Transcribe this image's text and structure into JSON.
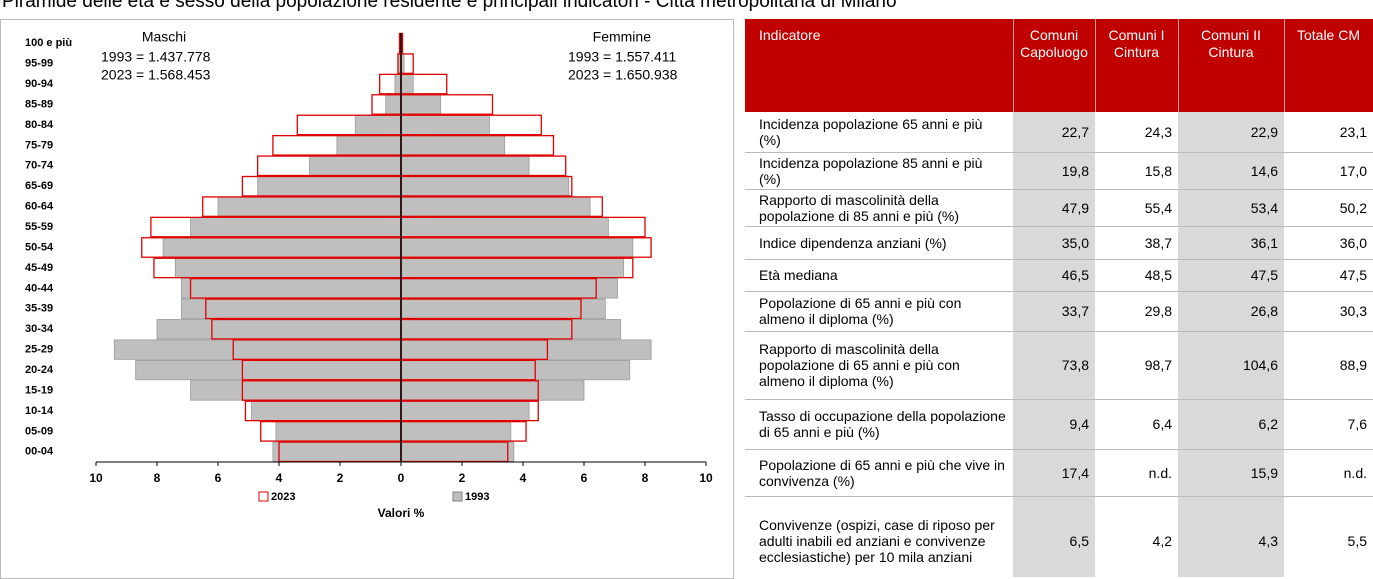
{
  "title": "Piramide delle età e sesso della popolazione residente e principali indicatori - Città metropolitana di Milano",
  "chart_data": {
    "type": "pyramid",
    "left_label": "Maschi",
    "right_label": "Femmine",
    "left_annotations": [
      "1993 = 1.437.778",
      "2023 = 1.568.453"
    ],
    "right_annotations": [
      "1993 = 1.557.411",
      "2023 = 1.650.938"
    ],
    "xlabel": "Valori %",
    "categories": [
      "100 e più",
      "95-99",
      "90-94",
      "85-89",
      "80-84",
      "75-79",
      "70-74",
      "65-69",
      "60-64",
      "55-59",
      "50-54",
      "45-49",
      "40-44",
      "35-39",
      "30-34",
      "25-29",
      "20-24",
      "15-19",
      "10-14",
      "05-09",
      "00-04"
    ],
    "series": [
      {
        "name": "2023",
        "color": "#e00000",
        "male_values": [
          0.05,
          0.1,
          0.7,
          0.95,
          3.4,
          4.2,
          4.7,
          5.2,
          6.5,
          8.2,
          8.5,
          8.1,
          6.9,
          6.4,
          6.2,
          5.5,
          5.2,
          5.2,
          5.1,
          4.6,
          4.0
        ],
        "female_values": [
          0.05,
          0.4,
          1.5,
          3.0,
          4.6,
          5.0,
          5.4,
          5.6,
          6.6,
          8.0,
          8.2,
          7.6,
          6.4,
          5.9,
          5.6,
          4.8,
          4.4,
          4.5,
          4.5,
          4.1,
          3.5
        ]
      },
      {
        "name": "1993",
        "color": "#bfbfbf",
        "male_values": [
          0.05,
          0.1,
          0.2,
          0.5,
          1.5,
          2.1,
          3.0,
          4.7,
          6.0,
          6.9,
          7.8,
          7.4,
          7.2,
          7.2,
          8.0,
          9.4,
          8.7,
          6.9,
          4.9,
          4.1,
          4.2
        ],
        "female_values": [
          0.05,
          0.1,
          0.4,
          1.3,
          2.9,
          3.4,
          4.2,
          5.5,
          6.2,
          6.8,
          7.6,
          7.3,
          7.1,
          6.7,
          7.2,
          8.2,
          7.5,
          6.0,
          4.2,
          3.6,
          3.7
        ]
      }
    ],
    "xlim": [
      -10,
      10
    ],
    "xticks": [
      {
        "value": -10,
        "label": "10"
      },
      {
        "value": -8,
        "label": "8"
      },
      {
        "value": -6,
        "label": "6"
      },
      {
        "value": -4,
        "label": "4"
      },
      {
        "value": -2,
        "label": "2"
      },
      0,
      2,
      4,
      6,
      8,
      10
    ]
  },
  "table": {
    "header": [
      "Indicatore",
      "Comuni Capoluogo",
      "Comuni I Cintura",
      "Comuni II Cintura",
      "Totale CM"
    ],
    "rows": [
      [
        "Incidenza popolazione 65 anni e più (%)",
        "22,7",
        "24,3",
        "22,9",
        "23,1"
      ],
      [
        "Incidenza popolazione 85 anni e più (%)",
        "19,8",
        "15,8",
        "14,6",
        "17,0"
      ],
      [
        "Rapporto di mascolinità della popolazione di 85 anni e più (%)",
        "47,9",
        "55,4",
        "53,4",
        "50,2"
      ],
      [
        "Indice dipendenza anziani (%)",
        "35,0",
        "38,7",
        "36,1",
        "36,0"
      ],
      [
        "Età mediana",
        "46,5",
        "48,5",
        "47,5",
        "47,5"
      ],
      [
        "Popolazione di 65 anni e più con almeno il diploma (%)",
        "33,7",
        "29,8",
        "26,8",
        "30,3"
      ],
      [
        "Rapporto di mascolinità della popolazione di 65 anni e più con almeno il diploma (%)",
        "73,8",
        "98,7",
        "104,6",
        "88,9"
      ],
      [
        "Tasso di occupazione della popolazione di 65 anni e più (%)",
        "9,4",
        "6,4",
        "6,2",
        "7,6"
      ],
      [
        "Popolazione di 65 anni e più che vive in convivenza (%)",
        "17,4",
        "n.d.",
        "15,9",
        "n.d."
      ],
      [
        "Convivenze (ospizi, case di riposo per adulti inabili ed anziani e convivenze ecclesiastiche) per 10 mila anziani",
        "6,5",
        "4,2",
        "4,3",
        "5,5"
      ]
    ]
  }
}
